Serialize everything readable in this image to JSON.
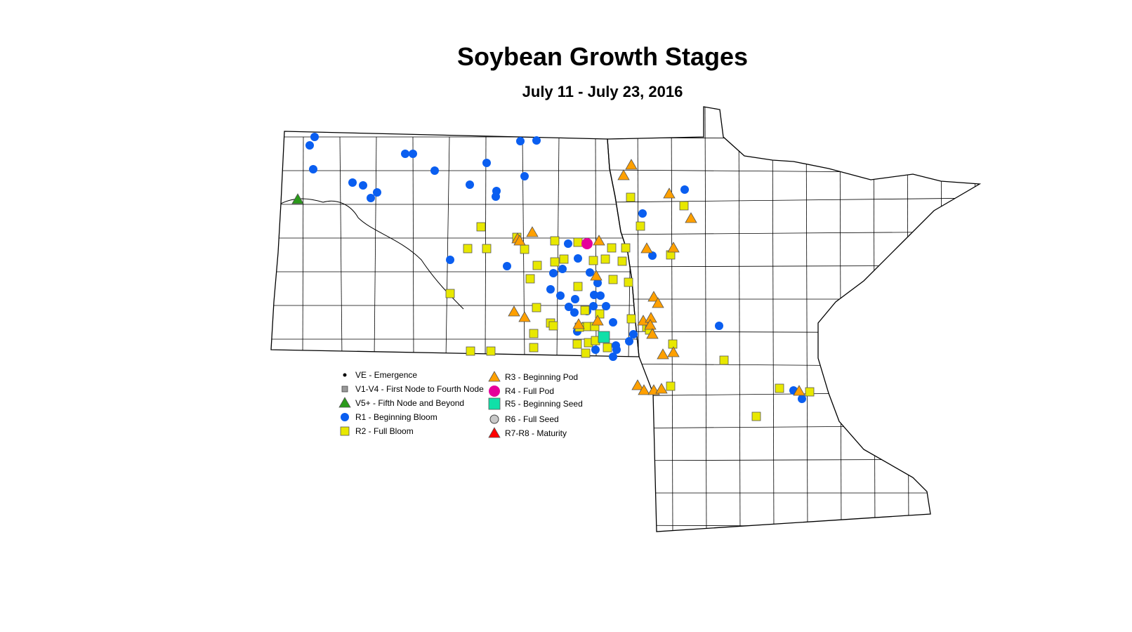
{
  "title": "Soybean Growth Stages",
  "subtitle": "July 11 - July 23, 2016",
  "legend": [
    {
      "key": "VE",
      "label": "VE - Emergence",
      "shape": "dot",
      "color": "#000000"
    },
    {
      "key": "V1V4",
      "label": "V1-V4 - First Node to Fourth Node",
      "shape": "square-small",
      "color": "#999999"
    },
    {
      "key": "V5",
      "label": "V5+ - Fifth Node and Beyond",
      "shape": "triangle",
      "color": "#2a9a1a"
    },
    {
      "key": "R1",
      "label": "R1 - Beginning Bloom",
      "shape": "circle",
      "color": "#0a5ef0"
    },
    {
      "key": "R2",
      "label": "R2 - Full Bloom",
      "shape": "square",
      "color": "#e8e800"
    },
    {
      "key": "R3",
      "label": "R3 - Beginning Pod",
      "shape": "triangle",
      "color": "#ffa000"
    },
    {
      "key": "R4",
      "label": "R4 - Full Pod",
      "shape": "circle",
      "color": "#e6009a"
    },
    {
      "key": "R5",
      "label": "R5 - Beginning Seed",
      "shape": "square",
      "color": "#10e0a8"
    },
    {
      "key": "R6",
      "label": "R6 - Full Seed",
      "shape": "circle",
      "color": "#c8c8c8"
    },
    {
      "key": "R7R8",
      "label": "R7-R8 - Maturity",
      "shape": "triangle",
      "color": "#ff0000"
    }
  ]
}
